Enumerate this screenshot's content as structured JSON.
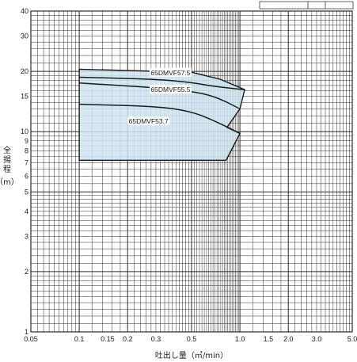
{
  "chart_data": {
    "type": "line",
    "title": "",
    "xlabel": "吐出し量（㎥/min）",
    "ylabel": [
      "全",
      "揚",
      "程",
      "（m）"
    ],
    "xscale": "log",
    "yscale": "log",
    "xlim": [
      0.05,
      5.0
    ],
    "ylim": [
      1,
      40
    ],
    "grid": true,
    "x_ticks": [
      {
        "value": 0.05,
        "label": "0.05"
      },
      {
        "value": 0.1,
        "label": "0.1"
      },
      {
        "value": 0.15,
        "label": "0.15"
      },
      {
        "value": 0.2,
        "label": "0.2"
      },
      {
        "value": 0.3,
        "label": "0.3"
      },
      {
        "value": 0.5,
        "label": "0.5"
      },
      {
        "value": 1.0,
        "label": "1.0"
      },
      {
        "value": 1.5,
        "label": "1.5"
      },
      {
        "value": 2.0,
        "label": "2.0"
      },
      {
        "value": 3.0,
        "label": "3.0"
      },
      {
        "value": 5.0,
        "label": "5.0"
      }
    ],
    "y_ticks": [
      {
        "value": 1,
        "label": "1"
      },
      {
        "value": 2,
        "label": "2"
      },
      {
        "value": 3,
        "label": "3"
      },
      {
        "value": 4,
        "label": "4"
      },
      {
        "value": 5,
        "label": "5"
      },
      {
        "value": 6,
        "label": "6"
      },
      {
        "value": 7,
        "label": "7"
      },
      {
        "value": 8,
        "label": "8"
      },
      {
        "value": 9,
        "label": "9"
      },
      {
        "value": 10,
        "label": "10"
      },
      {
        "value": 15,
        "label": "15"
      },
      {
        "value": 20,
        "label": "20"
      },
      {
        "value": 30,
        "label": "30"
      },
      {
        "value": 40,
        "label": "40"
      }
    ],
    "region": {
      "fill": "#cfe4f0",
      "outline": [
        [
          0.1,
          20.5
        ],
        [
          0.5,
          19.8
        ],
        [
          0.75,
          18.3
        ],
        [
          1.07,
          16.2
        ],
        [
          1.0,
          13.0
        ],
        [
          0.83,
          10.5
        ],
        [
          1.0,
          9.8
        ],
        [
          0.82,
          7.2
        ],
        [
          0.1,
          7.2
        ]
      ]
    },
    "series": [
      {
        "name": "65DMVF57.5",
        "points": [
          [
            0.1,
            18.7
          ],
          [
            0.3,
            18.3
          ],
          [
            0.5,
            17.6
          ],
          [
            0.7,
            16.8
          ],
          [
            1.07,
            16.2
          ]
        ]
      },
      {
        "name": "65DMVF55.5",
        "points": [
          [
            0.1,
            17.5
          ],
          [
            0.3,
            16.6
          ],
          [
            0.5,
            15.9
          ],
          [
            0.7,
            15.0
          ],
          [
            1.0,
            13.0
          ]
        ]
      },
      {
        "name": "65DMVF53.7",
        "points": [
          [
            0.1,
            13.7
          ],
          [
            0.3,
            13.4
          ],
          [
            0.5,
            12.6
          ],
          [
            0.7,
            11.3
          ],
          [
            1.0,
            9.8
          ]
        ]
      }
    ],
    "colors": {
      "grid": "#2b2b2b",
      "line": "#1a1a1a",
      "label_bg": "#ffffff"
    }
  }
}
